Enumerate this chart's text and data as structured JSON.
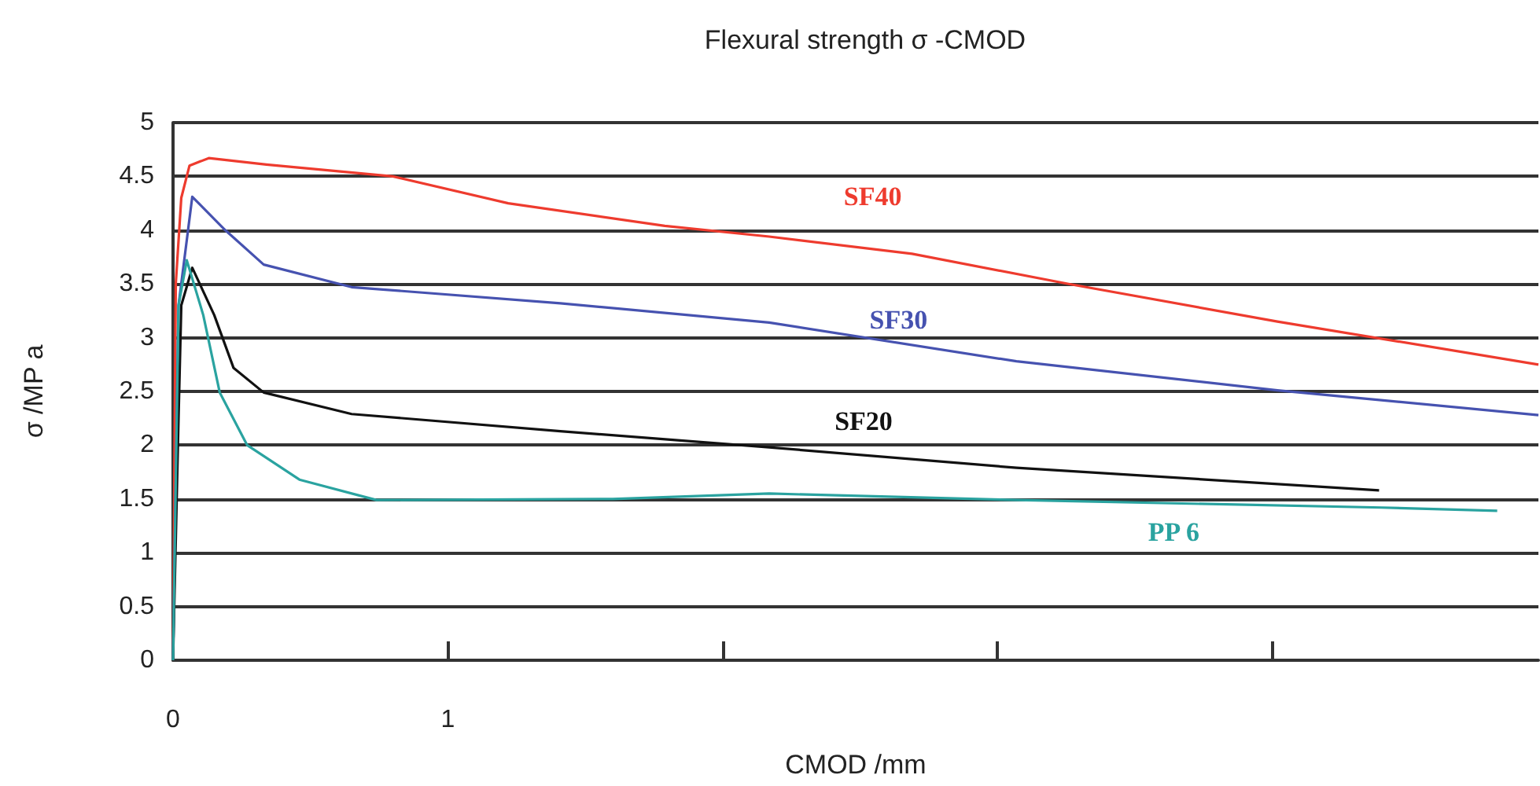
{
  "chart_data": {
    "type": "line",
    "title": "Flexural strength σ -CMOD",
    "xlabel": "CMOD /mm",
    "ylabel": "σ /MP a",
    "xlim": [
      0,
      4.97
    ],
    "xticks": [
      0,
      1,
      {
        "value": 2,
        "label": null
      },
      {
        "value": 3,
        "label": null
      },
      {
        "value": 4,
        "label": null
      }
    ],
    "ylim": [
      0,
      5
    ],
    "yticks": [
      0,
      0.5,
      1,
      1.5,
      2,
      2.5,
      3,
      3.5,
      4,
      4.5,
      5
    ],
    "grid": "y",
    "marker": "none",
    "line_style": "solid",
    "series": [
      {
        "name": "SF40",
        "color": "#ee3b2e",
        "x": [
          0,
          0.01,
          0.03,
          0.06,
          0.13,
          0.34,
          0.8,
          1.22,
          1.79,
          2.17,
          2.69,
          3.26,
          4.02,
          4.97
        ],
        "values": [
          0,
          3.5,
          4.3,
          4.6,
          4.67,
          4.61,
          4.5,
          4.25,
          4.04,
          3.94,
          3.78,
          3.5,
          3.15,
          2.75
        ]
      },
      {
        "name": "SF30",
        "color": "#4652b0",
        "x": [
          0,
          0.02,
          0.07,
          0.19,
          0.33,
          0.65,
          1.41,
          2.17,
          3.07,
          4.02,
          4.97
        ],
        "values": [
          0,
          3.3,
          4.31,
          4.0,
          3.68,
          3.47,
          3.32,
          3.14,
          2.78,
          2.51,
          2.28
        ]
      },
      {
        "name": "SF20",
        "color": "#111111",
        "x": [
          0,
          0.02,
          0.03,
          0.07,
          0.15,
          0.22,
          0.33,
          0.65,
          1.41,
          2.17,
          3.07,
          4.39
        ],
        "values": [
          0,
          2.25,
          3.3,
          3.65,
          3.21,
          2.72,
          2.49,
          2.29,
          2.13,
          1.98,
          1.79,
          1.58
        ]
      },
      {
        "name": "PP 6",
        "color": "#2aa3a0",
        "x": [
          0,
          0.02,
          0.05,
          0.11,
          0.17,
          0.27,
          0.46,
          0.74,
          1.6,
          2.17,
          3.07,
          4.4,
          4.82
        ],
        "values": [
          0,
          3.3,
          3.72,
          3.21,
          2.49,
          2.0,
          1.68,
          1.49,
          1.5,
          1.55,
          1.49,
          1.42,
          1.39
        ]
      }
    ]
  }
}
